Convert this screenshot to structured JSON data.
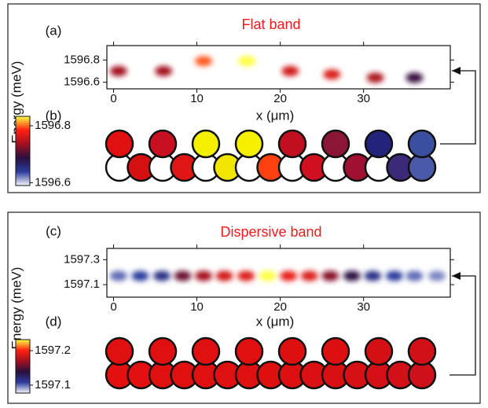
{
  "chart_data": [
    {
      "type": "heatmap",
      "panel_label": "(a)",
      "title": "Flat band",
      "xlabel": "x (μm)",
      "ylabel": "Energy (meV)",
      "xlim": [
        -0.8,
        40.4
      ],
      "xticks": [
        0,
        10,
        20,
        30
      ],
      "ylim": [
        1596.54,
        1596.93
      ],
      "yticks": [
        1596.6,
        1596.8
      ],
      "colormap": [
        "#f6f6fb",
        "#2b3c9c",
        "#2a0f3f",
        "#a3101f",
        "#ff2010",
        "#ffff40"
      ],
      "spots": {
        "x": [
          0.6,
          6.0,
          10.8,
          16.0,
          21.2,
          26.2,
          31.4,
          36.1
        ],
        "energy": [
          1596.7,
          1596.7,
          1596.79,
          1596.79,
          1596.7,
          1596.67,
          1596.64,
          1596.64
        ],
        "intensity": [
          0.6,
          0.6,
          0.85,
          1.0,
          0.7,
          0.72,
          0.62,
          0.42
        ]
      }
    },
    {
      "type": "lattice",
      "panel_label": "(b)",
      "ylim": [
        1596.59,
        1596.833
      ],
      "yticks": [
        1596.6,
        1596.8
      ],
      "colormap": [
        "#f6f6fb",
        "#2b3c9c",
        "#2a0f3f",
        "#a3101f",
        "#ff2010",
        "#ffff40"
      ],
      "top_colors": [
        "#e01010",
        "#c81020",
        "#f5f000",
        "#f5f000",
        "#c01020",
        "#8a1535",
        "#22237a",
        "#3a4f9f"
      ],
      "bottom_colors": [
        "#ffffff",
        "#d51010",
        "#ffffff",
        "#e01515",
        "#ffffff",
        "#f2e600",
        "#ffffff",
        "#ff4010",
        "#ffffff",
        "#d01020",
        "#ffffff",
        "#a01030",
        "#ffffff",
        "#3a2a78",
        "#4a5aa8"
      ]
    },
    {
      "type": "heatmap",
      "panel_label": "(c)",
      "title": "Dispersive band",
      "xlabel": "x (μm)",
      "ylabel": "Energy (meV)",
      "xlim": [
        -0.8,
        40.4
      ],
      "xticks": [
        0,
        10,
        20,
        30
      ],
      "ylim": [
        1597.0,
        1597.39
      ],
      "yticks": [
        1597.1,
        1597.3
      ],
      "colormap": [
        "#f6f6fb",
        "#2b3c9c",
        "#2a0f3f",
        "#a3101f",
        "#ff2010",
        "#ffff40"
      ],
      "spots": {
        "x": [
          0.6,
          3.2,
          5.8,
          8.3,
          10.8,
          13.3,
          15.9,
          18.5,
          21.0,
          23.5,
          26.0,
          28.6,
          31.1,
          33.7,
          36.1,
          38.8
        ],
        "energy": [
          1597.17,
          1597.17,
          1597.17,
          1597.17,
          1597.17,
          1597.17,
          1597.17,
          1597.17,
          1597.17,
          1597.17,
          1597.17,
          1597.17,
          1597.17,
          1597.17,
          1597.17,
          1597.17
        ],
        "intensity": [
          0.15,
          0.2,
          0.25,
          0.5,
          0.6,
          0.7,
          0.72,
          1.0,
          0.75,
          0.72,
          0.55,
          0.4,
          0.25,
          0.2,
          0.15,
          0.12
        ]
      }
    },
    {
      "type": "lattice",
      "panel_label": "(d)",
      "ylim": [
        1597.077,
        1597.232
      ],
      "yticks": [
        1597.1,
        1597.2
      ],
      "colormap": [
        "#f6f6fb",
        "#2b3c9c",
        "#2a0f3f",
        "#a3101f",
        "#ff2010",
        "#ffff40"
      ],
      "top_colors": [
        "#e01010",
        "#e01010",
        "#e01010",
        "#e01010",
        "#dd1010",
        "#dc1010",
        "#d51015",
        "#d21018"
      ],
      "bottom_colors": [
        "#e41010",
        "#e21010",
        "#e01010",
        "#e01010",
        "#e01010",
        "#df1010",
        "#de1010",
        "#dd1010",
        "#dc1010",
        "#da1012",
        "#d81014",
        "#d61015",
        "#d41016",
        "#d11018",
        "#ce101a"
      ]
    }
  ]
}
